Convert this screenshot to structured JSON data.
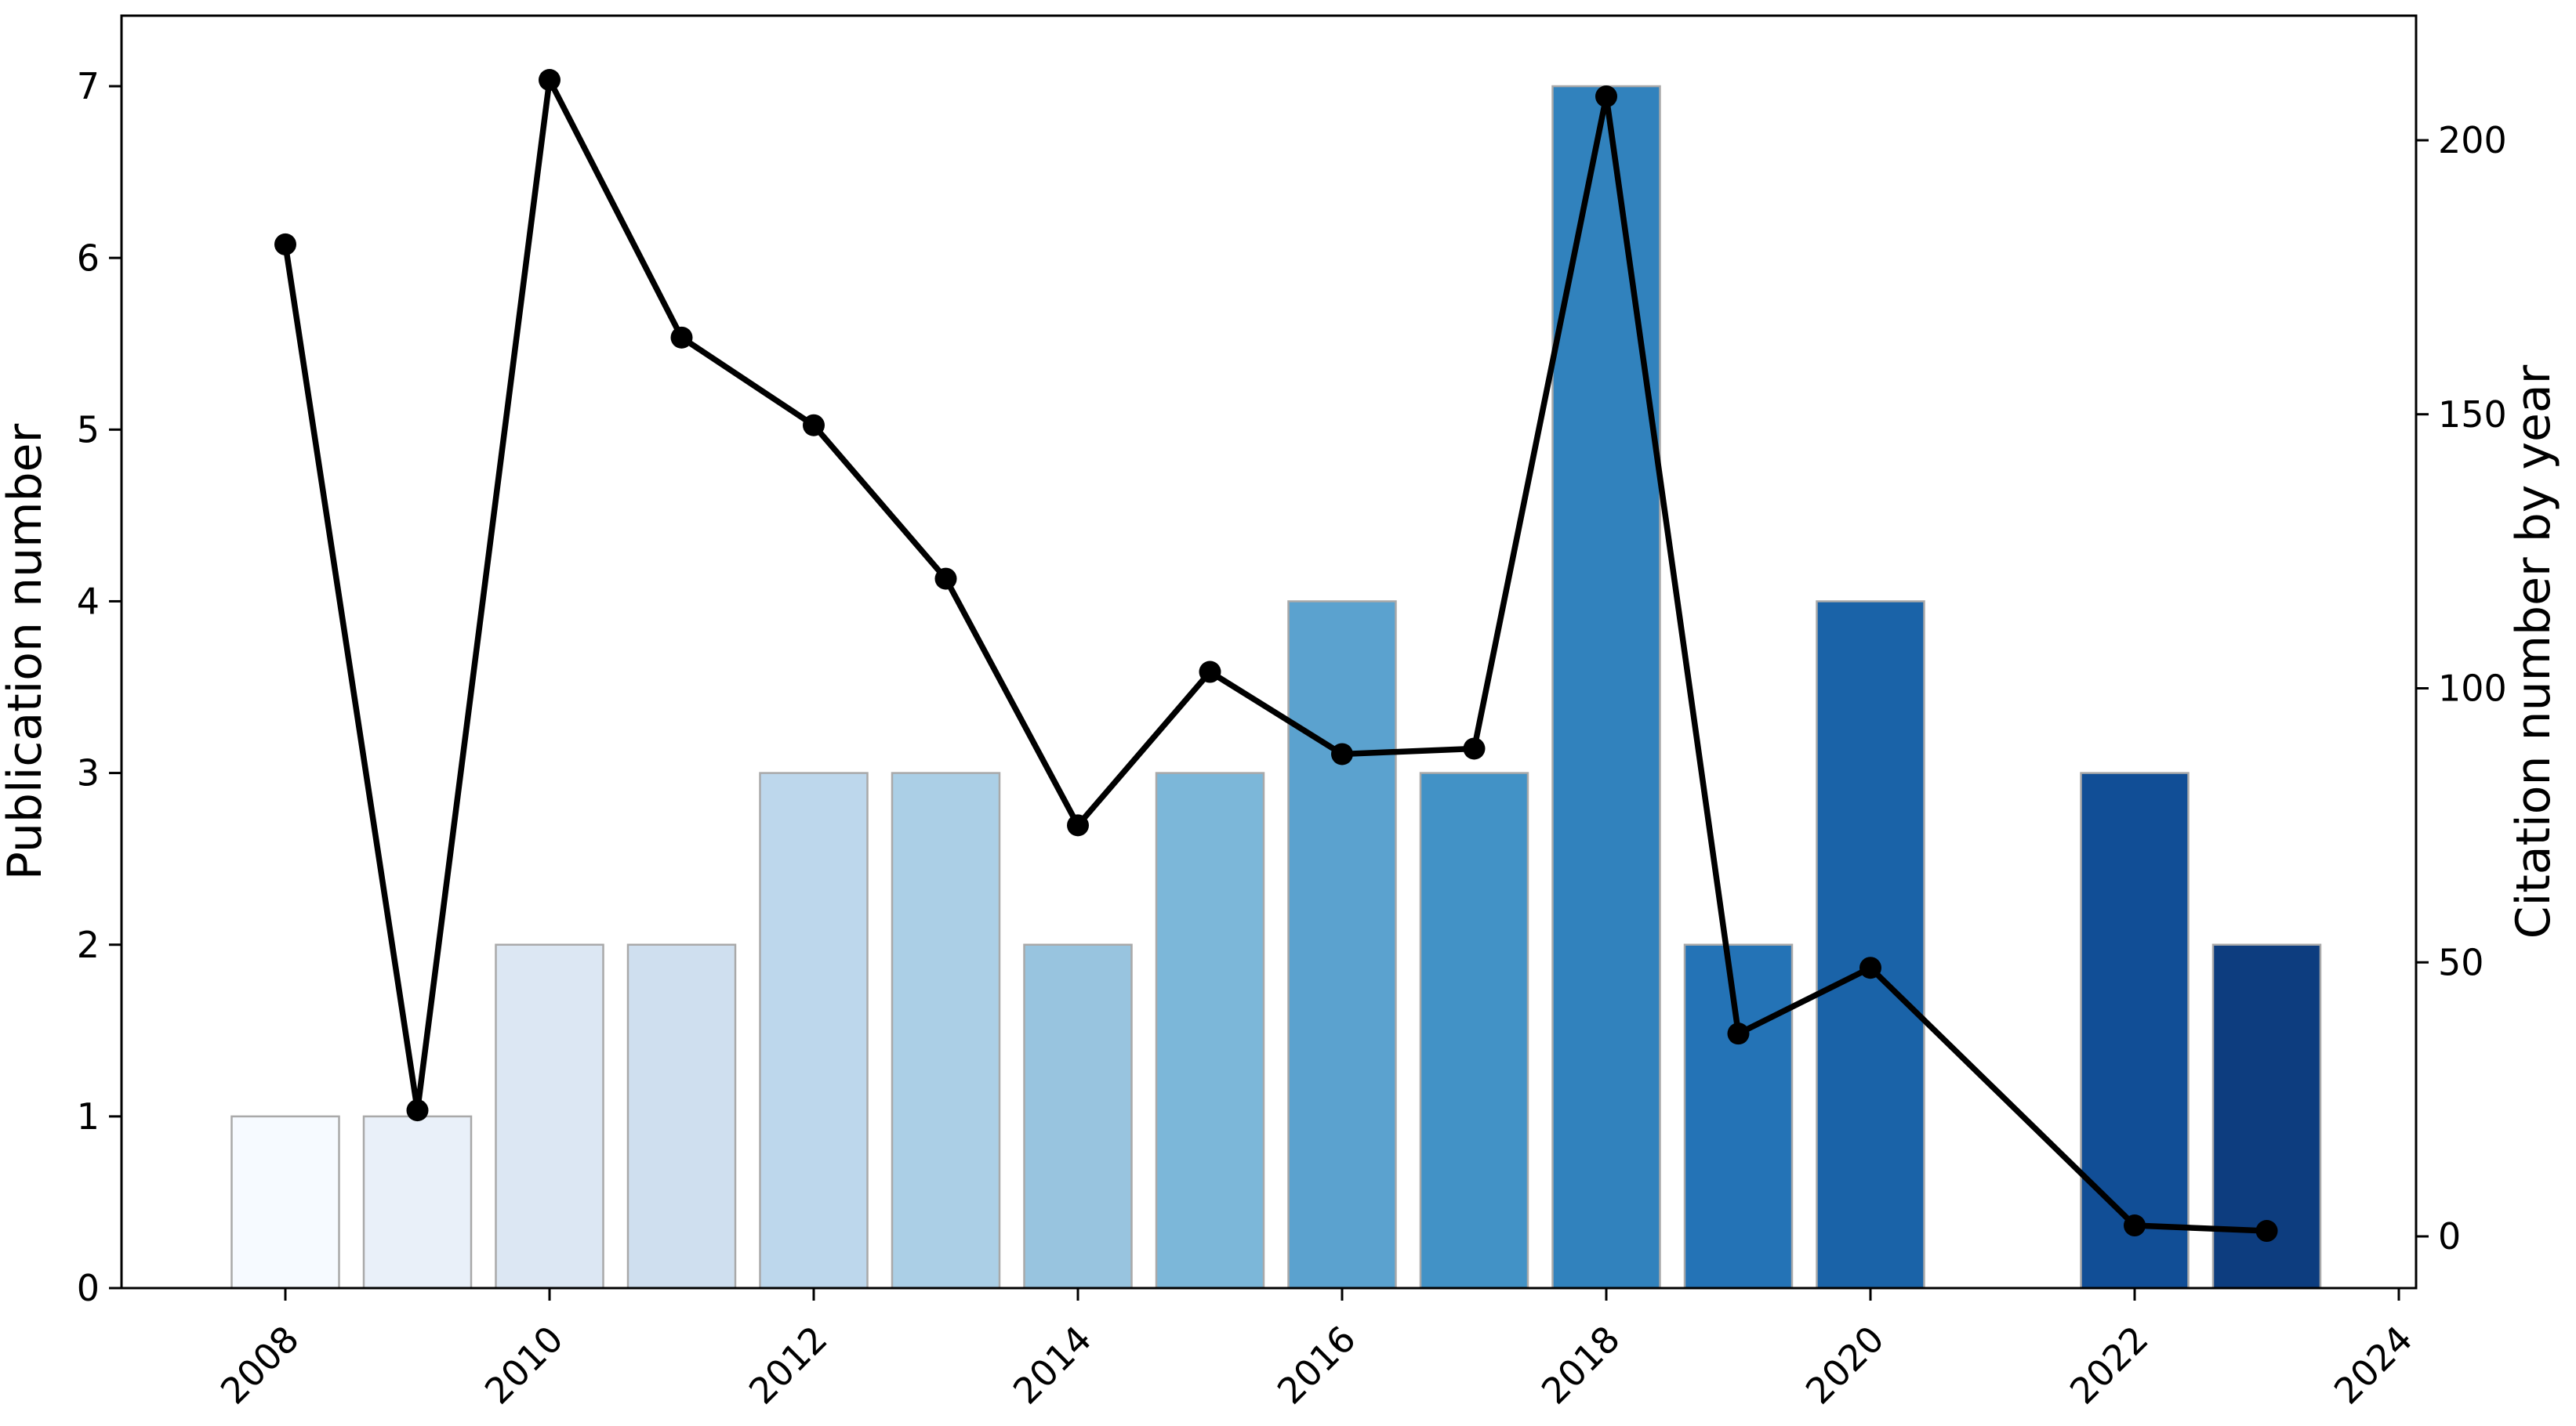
{
  "figure": {
    "background": "#ffffff",
    "plot_border_color": "#000000"
  },
  "chart_data": {
    "type": "bar",
    "subtype": "dual-axis bar + line",
    "title": "",
    "xlabel": "",
    "ylabel_left": "Publication number",
    "ylabel_right": "Citation number by year",
    "categories": [
      2008,
      2009,
      2010,
      2011,
      2012,
      2013,
      2014,
      2015,
      2016,
      2017,
      2018,
      2019,
      2020,
      2021,
      2022,
      2023
    ],
    "series": [
      {
        "name": "Publication number",
        "type": "bar",
        "axis": "left",
        "values": [
          1,
          1,
          2,
          2,
          3,
          3,
          2,
          3,
          4,
          3,
          7,
          2,
          4,
          null,
          3,
          2
        ]
      },
      {
        "name": "Citation number by year",
        "type": "line",
        "axis": "right",
        "values": [
          181,
          23,
          211,
          164,
          148,
          120,
          75,
          103,
          88,
          89,
          208,
          37,
          49,
          null,
          2,
          1
        ]
      }
    ],
    "left_axis": {
      "ticks": [
        0,
        1,
        2,
        3,
        4,
        5,
        6,
        7
      ],
      "range": [
        0,
        7.41
      ]
    },
    "right_axis": {
      "ticks": [
        0,
        50,
        100,
        150,
        200
      ],
      "range": [
        -9.4,
        222.8
      ]
    },
    "x_axis": {
      "ticks": [
        2008,
        2010,
        2012,
        2014,
        2016,
        2018,
        2020,
        2022,
        2024
      ],
      "tick_rotation_deg": 45
    },
    "grid": false,
    "legend": "none",
    "bar_colors": [
      "#f6faff",
      "#e9f0f9",
      "#dce7f3",
      "#cfdfef",
      "#bdd7ec",
      "#abcfe6",
      "#98c4df",
      "#7cb7d9",
      "#5ba2cf",
      "#4292c6",
      "#3182bd",
      "#2473b6",
      "#1a63a8",
      null,
      "#114e96",
      "#0d3d7f"
    ],
    "bar_edge_color": "#a9a9a9",
    "line_color": "#000000",
    "marker_color": "#000000"
  }
}
